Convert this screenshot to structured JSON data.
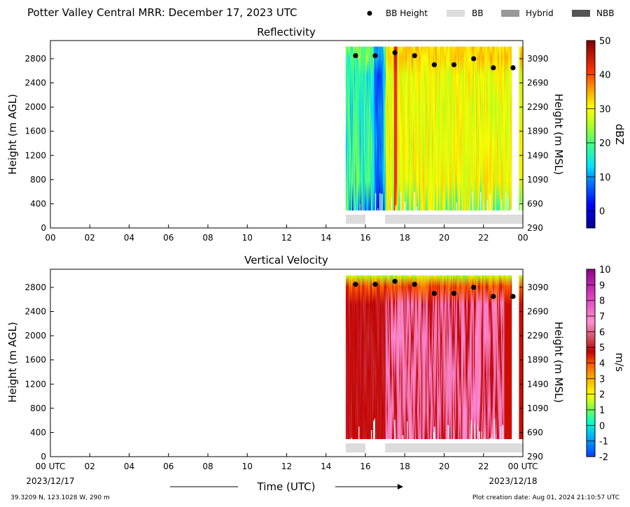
{
  "header": {
    "title": "Potter Valley Central MRR:  December 17, 2023 UTC"
  },
  "legend": [
    {
      "label": "BB Height",
      "kind": "dot",
      "color": "#000000"
    },
    {
      "label": "BB",
      "kind": "swatch",
      "color": "#dcdcdc"
    },
    {
      "label": "Hybrid",
      "kind": "swatch",
      "color": "#999999"
    },
    {
      "label": "NBB",
      "kind": "swatch",
      "color": "#555555"
    }
  ],
  "footer": {
    "location": "39.3209 N, 123.1028 W, 290 m",
    "created": "Plot creation date: Aug 01, 2024 21:10:57 UTC",
    "xlabel": "Time (UTC)",
    "start_date": "2023/12/17",
    "end_date": "2023/12/18"
  },
  "chart_data": [
    {
      "type": "heatmap",
      "title": "Reflectivity",
      "ylabel": "Height (m AGL)",
      "ylabel_right": "Height (m MSL)",
      "colorbar_label": "dBZ",
      "colorbar_ticks": [
        "50",
        "40",
        "30",
        "20",
        "10",
        "0"
      ],
      "colorbar_range": [
        -5,
        50
      ],
      "x_ticks": [
        "00",
        "02",
        "04",
        "06",
        "08",
        "10",
        "12",
        "14",
        "16",
        "18",
        "20",
        "22",
        "00"
      ],
      "y_ticks": [
        "0",
        "400",
        "800",
        "1200",
        "1600",
        "2000",
        "2400",
        "2800"
      ],
      "y_ticks_right": [
        "290",
        "690",
        "1090",
        "1490",
        "1890",
        "2290",
        "2690",
        "3090"
      ],
      "xlim": [
        0,
        24
      ],
      "ylim": [
        0,
        3100
      ],
      "data_window_hours": [
        15,
        24
      ],
      "data_height_range_m": [
        290,
        3000
      ],
      "bb_height": {
        "x": [
          15.5,
          16.5,
          17.5,
          18.5,
          19.5,
          20.5,
          21.5,
          22.5,
          23.5
        ],
        "y": [
          2850,
          2850,
          2900,
          2850,
          2700,
          2700,
          2800,
          2650,
          2650
        ]
      },
      "bb_bar_segments_hours": [
        [
          15.0,
          16.0
        ],
        [
          17.0,
          24.0
        ]
      ]
    },
    {
      "type": "heatmap",
      "title": "Vertical Velocity",
      "ylabel": "Height (m AGL)",
      "ylabel_right": "Height (m MSL)",
      "colorbar_label": "m/s",
      "colorbar_ticks": [
        "10",
        "9",
        "8",
        "7",
        "6",
        "5",
        "4",
        "3",
        "2",
        "1",
        "0",
        "-1",
        "-2"
      ],
      "colorbar_range": [
        -2,
        10
      ],
      "x_ticks": [
        "00 UTC",
        "02",
        "04",
        "06",
        "08",
        "10",
        "12",
        "14",
        "16",
        "18",
        "20",
        "22",
        "00 UTC"
      ],
      "y_ticks": [
        "0",
        "400",
        "800",
        "1200",
        "1600",
        "2000",
        "2400",
        "2800"
      ],
      "y_ticks_right": [
        "290",
        "690",
        "1090",
        "1490",
        "1890",
        "2290",
        "2690",
        "3090"
      ],
      "xlim": [
        0,
        24
      ],
      "ylim": [
        0,
        3100
      ],
      "data_window_hours": [
        15,
        24
      ],
      "data_height_range_m": [
        290,
        3000
      ],
      "bb_height": {
        "x": [
          15.5,
          16.5,
          17.5,
          18.5,
          19.5,
          20.5,
          21.5,
          22.5,
          23.5
        ],
        "y": [
          2850,
          2850,
          2900,
          2850,
          2700,
          2700,
          2800,
          2650,
          2650
        ]
      },
      "bb_bar_segments_hours": [
        [
          15.0,
          16.0
        ],
        [
          17.0,
          24.0
        ]
      ]
    }
  ]
}
